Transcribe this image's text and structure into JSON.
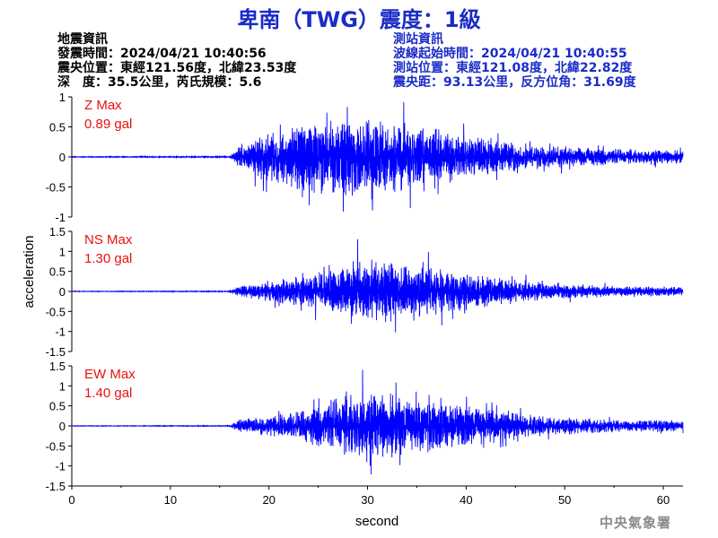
{
  "title": "卑南（TWG）震度：1級",
  "quake_info": {
    "heading": "地震資訊",
    "origin_time": "發震時間：2024/04/21 10:40:56",
    "epicenter": "震央位置：東經121.56度，北緯23.53度",
    "depth_mag": "深　度：35.5公里，芮氏規模：5.6"
  },
  "station_info": {
    "heading": "測站資訊",
    "onset_time": "波線起始時間：2024/04/21 10:40:55",
    "location": "測站位置：東經121.08度，北緯22.82度",
    "distance": "震央距：93.13公里，反方位角：31.69度"
  },
  "credit": "中央氣象署",
  "chart_data": {
    "type": "line",
    "xlabel": "second",
    "ylabel": "acceleration",
    "xlim": [
      0,
      62
    ],
    "x_ticks": [
      "0",
      "10",
      "20",
      "30",
      "40",
      "50",
      "60"
    ],
    "line_color": "#0000ff",
    "label_color": "#e81010",
    "panels": [
      {
        "name": "Z Max",
        "max_label": "0.89 gal",
        "ylim": [
          -1,
          1
        ],
        "y_ticks": [
          "1",
          "0.5",
          "0",
          "-0.5",
          "-1"
        ],
        "onset_s": 16.0,
        "peak_abs": 0.89,
        "peak_time_s": 30.5,
        "envelope": [
          [
            0,
            0.008
          ],
          [
            16,
            0.012
          ],
          [
            17,
            0.22
          ],
          [
            20,
            0.45
          ],
          [
            23,
            0.62
          ],
          [
            26,
            0.66
          ],
          [
            30,
            0.72
          ],
          [
            34,
            0.6
          ],
          [
            38,
            0.46
          ],
          [
            42,
            0.32
          ],
          [
            46,
            0.24
          ],
          [
            52,
            0.16
          ],
          [
            58,
            0.13
          ],
          [
            62,
            0.12
          ]
        ]
      },
      {
        "name": "NS Max",
        "max_label": "1.30 gal",
        "ylim": [
          -1.5,
          1.5
        ],
        "y_ticks": [
          "1.5",
          "1",
          "0.5",
          "0",
          "-0.5",
          "-1",
          "-1.5"
        ],
        "onset_s": 16.0,
        "peak_abs": 1.3,
        "peak_time_s": 29.0,
        "envelope": [
          [
            0,
            0.008
          ],
          [
            16,
            0.012
          ],
          [
            17,
            0.14
          ],
          [
            21,
            0.32
          ],
          [
            25,
            0.5
          ],
          [
            28,
            0.8
          ],
          [
            32,
            0.85
          ],
          [
            36,
            0.68
          ],
          [
            40,
            0.5
          ],
          [
            44,
            0.36
          ],
          [
            48,
            0.22
          ],
          [
            54,
            0.15
          ],
          [
            62,
            0.12
          ]
        ]
      },
      {
        "name": "EW Max",
        "max_label": "1.40 gal",
        "ylim": [
          -1.5,
          1.5
        ],
        "y_ticks": [
          "1.5",
          "1",
          "0.5",
          "0",
          "-0.5",
          "-1",
          "-1.5"
        ],
        "onset_s": 16.0,
        "peak_abs": 1.4,
        "peak_time_s": 29.5,
        "envelope": [
          [
            0,
            0.008
          ],
          [
            16,
            0.012
          ],
          [
            17,
            0.18
          ],
          [
            21,
            0.3
          ],
          [
            25,
            0.55
          ],
          [
            28,
            0.9
          ],
          [
            32,
            0.88
          ],
          [
            36,
            0.7
          ],
          [
            40,
            0.55
          ],
          [
            44,
            0.4
          ],
          [
            48,
            0.26
          ],
          [
            54,
            0.18
          ],
          [
            62,
            0.14
          ]
        ]
      }
    ]
  }
}
